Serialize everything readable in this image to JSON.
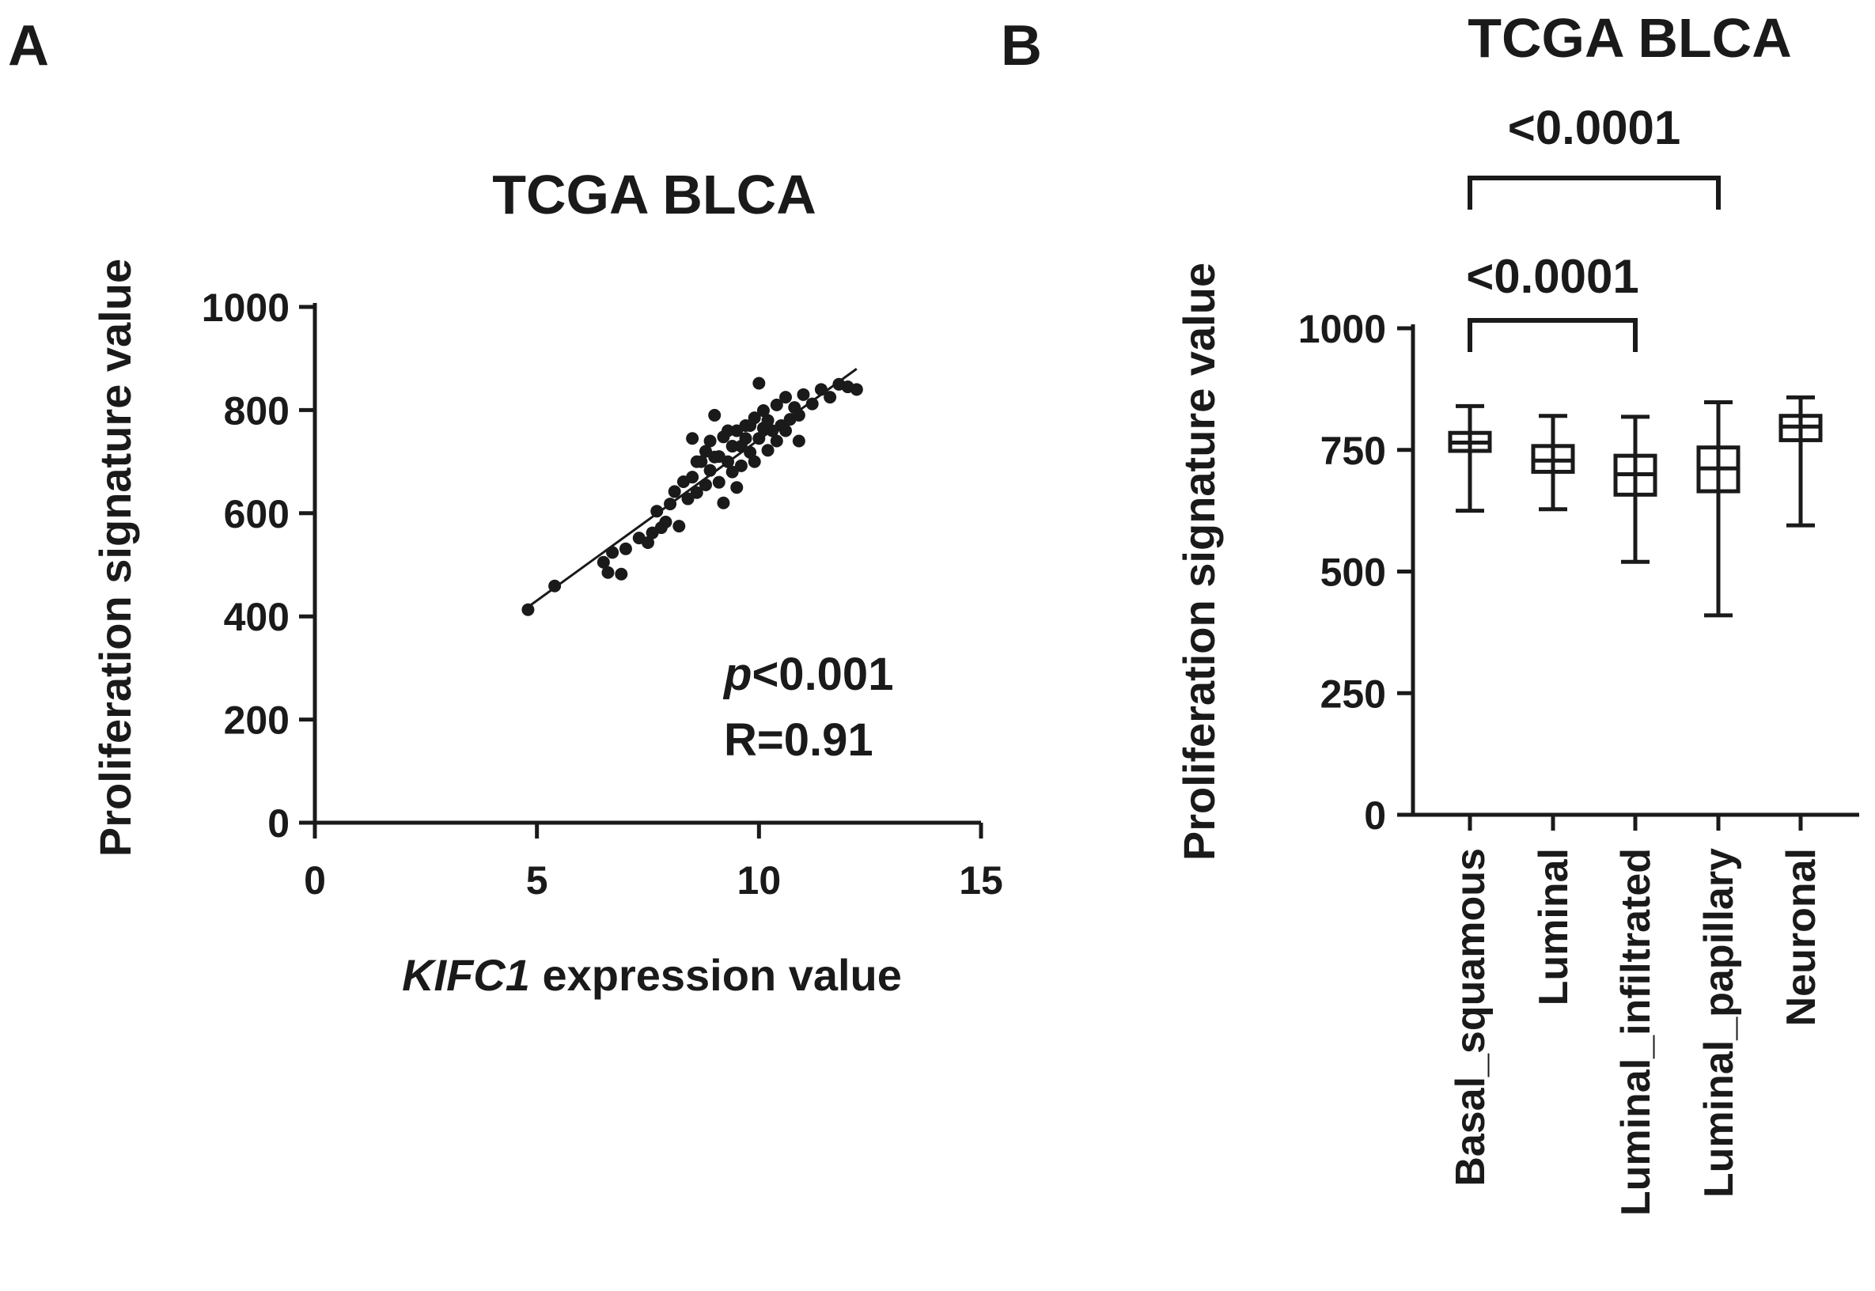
{
  "panels": {
    "a": "A",
    "b": "B"
  },
  "chart_data": [
    {
      "type": "scatter",
      "panel": "A",
      "title": "TCGA BLCA",
      "xlabel_italic": "KIFC1",
      "xlabel_rest": " expression value",
      "ylabel": "Proliferation signature  value",
      "xlim": [
        0,
        15
      ],
      "ylim": [
        0,
        1000
      ],
      "xticks": [
        0,
        5,
        10,
        15
      ],
      "yticks": [
        0,
        200,
        400,
        600,
        800,
        1000
      ],
      "annotation": {
        "p_italic": "p",
        "p_rest": "<0.001",
        "r": "R=0.91"
      },
      "fit_line": {
        "x": [
          4.7,
          12.2
        ],
        "y": [
          412,
          880
        ]
      },
      "points": [
        [
          4.8,
          413
        ],
        [
          5.4,
          459
        ],
        [
          6.5,
          505
        ],
        [
          6.6,
          485
        ],
        [
          6.9,
          482
        ],
        [
          7.0,
          531
        ],
        [
          6.7,
          524
        ],
        [
          7.3,
          552
        ],
        [
          7.5,
          543
        ],
        [
          7.6,
          562
        ],
        [
          7.8,
          572
        ],
        [
          7.7,
          604
        ],
        [
          8.0,
          618
        ],
        [
          8.1,
          642
        ],
        [
          8.2,
          575
        ],
        [
          7.9,
          583
        ],
        [
          8.3,
          661
        ],
        [
          8.4,
          628
        ],
        [
          8.5,
          670
        ],
        [
          8.6,
          640
        ],
        [
          8.7,
          700
        ],
        [
          8.8,
          655
        ],
        [
          8.9,
          683
        ],
        [
          9.0,
          709
        ],
        [
          9.1,
          660
        ],
        [
          9.2,
          748
        ],
        [
          9.3,
          700
        ],
        [
          9.4,
          730
        ],
        [
          9.5,
          760
        ],
        [
          9.6,
          692
        ],
        [
          9.7,
          770
        ],
        [
          9.8,
          718
        ],
        [
          9.9,
          785
        ],
        [
          10.0,
          745
        ],
        [
          10.1,
          799
        ],
        [
          10.2,
          722
        ],
        [
          10.3,
          760
        ],
        [
          10.4,
          810
        ],
        [
          10.5,
          770
        ],
        [
          10.6,
          825
        ],
        [
          10.7,
          782
        ],
        [
          10.8,
          805
        ],
        [
          10.9,
          790
        ],
        [
          11.0,
          830
        ],
        [
          11.2,
          812
        ],
        [
          11.4,
          840
        ],
        [
          11.6,
          825
        ],
        [
          11.8,
          850
        ],
        [
          12.0,
          845
        ],
        [
          12.2,
          840
        ],
        [
          9.0,
          790
        ],
        [
          9.5,
          650
        ],
        [
          8.5,
          745
        ],
        [
          10.0,
          852
        ],
        [
          10.9,
          740
        ],
        [
          9.2,
          620
        ],
        [
          8.8,
          720
        ],
        [
          9.4,
          680
        ],
        [
          9.6,
          730
        ],
        [
          9.8,
          770
        ],
        [
          10.2,
          780
        ],
        [
          10.6,
          760
        ],
        [
          9.3,
          760
        ],
        [
          8.6,
          700
        ],
        [
          9.9,
          700
        ],
        [
          10.4,
          740
        ],
        [
          8.9,
          740
        ],
        [
          9.1,
          710
        ],
        [
          9.7,
          745
        ],
        [
          10.1,
          765
        ]
      ]
    },
    {
      "type": "box",
      "panel": "B",
      "title": "TCGA BLCA",
      "ylabel": "Proliferation signature value",
      "ylim": [
        0,
        1000
      ],
      "yticks": [
        0,
        250,
        500,
        750,
        1000
      ],
      "categories": [
        "Basal_squamous",
        "Luminal",
        "Luminal_infiltrated",
        "Luminal_papillary",
        "Neuronal"
      ],
      "boxes": [
        {
          "min": 625,
          "q1": 748,
          "median": 765,
          "q3": 785,
          "max": 840
        },
        {
          "min": 628,
          "q1": 705,
          "median": 728,
          "q3": 758,
          "max": 820
        },
        {
          "min": 520,
          "q1": 658,
          "median": 700,
          "q3": 738,
          "max": 818
        },
        {
          "min": 410,
          "q1": 665,
          "median": 712,
          "q3": 755,
          "max": 848
        },
        {
          "min": 595,
          "q1": 770,
          "median": 798,
          "q3": 820,
          "max": 858
        }
      ],
      "comparisons": [
        {
          "from": 0,
          "to": 2,
          "label": "<0.0001"
        },
        {
          "from": 0,
          "to": 3,
          "label": "<0.0001"
        }
      ]
    }
  ]
}
